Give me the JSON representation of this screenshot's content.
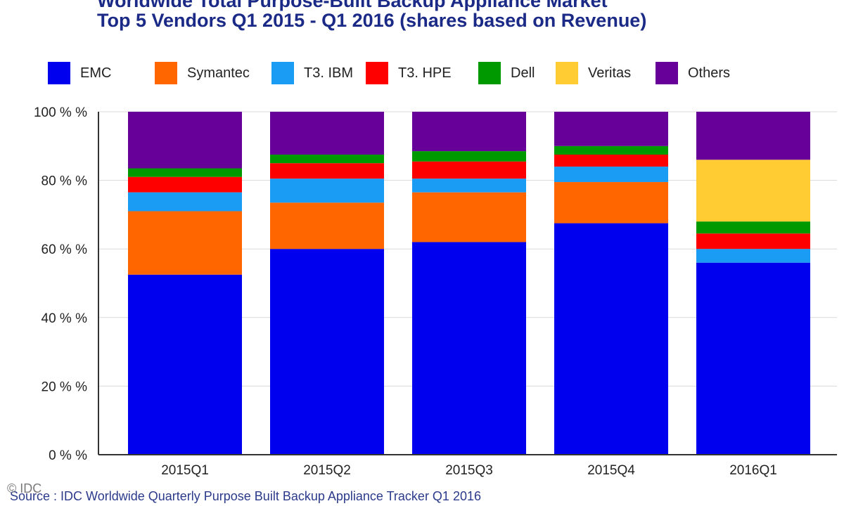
{
  "title_line1": "Worldwide Total Purpose-Built Backup Appliance Market",
  "title_line2": "Top 5 Vendors  Q1 2015 - Q1 2016 (shares based on Revenue)",
  "source": "Source : IDC Worldwide Quarterly Purpose Built Backup Appliance Tracker Q1 2016",
  "copyright": "© IDC",
  "chart_data": {
    "type": "bar",
    "stacked": true,
    "categories": [
      "2015Q1",
      "2015Q2",
      "2015Q3",
      "2015Q4",
      "2016Q1"
    ],
    "y_tick_labels": [
      "0 % %",
      "20 % %",
      "40 % %",
      "60 % %",
      "80 % %",
      "100 % %"
    ],
    "ylim": [
      0,
      100
    ],
    "legend_position": "top",
    "grid": true,
    "series": [
      {
        "name": "EMC",
        "color": "#0000ee",
        "values": [
          52.5,
          60,
          62,
          67.5,
          56
        ]
      },
      {
        "name": "Symantec",
        "color": "#ff6600",
        "values": [
          18.5,
          13.5,
          14.5,
          12,
          0
        ]
      },
      {
        "name": "T3. IBM",
        "color": "#1a9cf5",
        "values": [
          5.5,
          7,
          4,
          4.5,
          4
        ]
      },
      {
        "name": "T3. HPE",
        "color": "#ff0000",
        "values": [
          4.5,
          4.5,
          5,
          3.5,
          4.5
        ]
      },
      {
        "name": "Dell",
        "color": "#009900",
        "values": [
          2.5,
          2.5,
          3,
          2.5,
          3.5
        ]
      },
      {
        "name": "Veritas",
        "color": "#ffcc33",
        "values": [
          0,
          0,
          0,
          0,
          18
        ]
      },
      {
        "name": "Others",
        "color": "#660099",
        "values": [
          16.5,
          12.5,
          11.5,
          10,
          14
        ]
      }
    ]
  }
}
